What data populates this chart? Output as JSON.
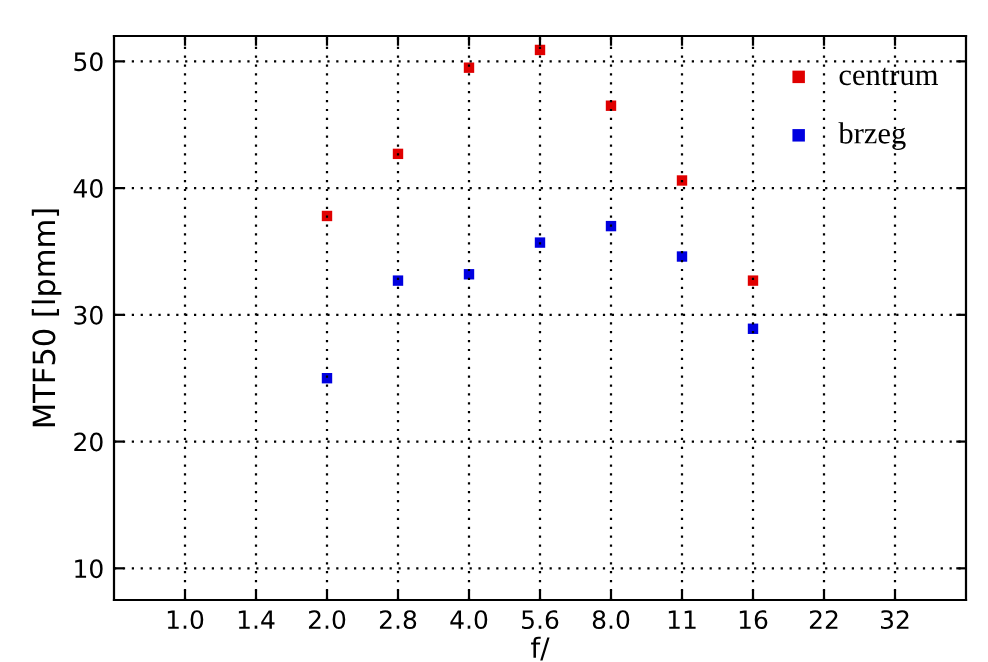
{
  "chart_data": {
    "type": "scatter",
    "xlabel": "f/",
    "ylabel": "MTF50 [lpmm]",
    "categories": [
      "1.0",
      "1.4",
      "2.0",
      "2.8",
      "4.0",
      "5.6",
      "8.0",
      "11",
      "16",
      "22",
      "32"
    ],
    "series": [
      {
        "name": "centrum",
        "color": "#e00000",
        "values": [
          null,
          null,
          37.8,
          42.7,
          49.5,
          50.9,
          46.5,
          40.6,
          32.7,
          null,
          null
        ]
      },
      {
        "name": "brzeg",
        "color": "#0000e0",
        "values": [
          null,
          null,
          25.0,
          32.7,
          33.2,
          35.7,
          37.0,
          34.6,
          28.9,
          null,
          null
        ]
      }
    ],
    "ylim": [
      7.5,
      52
    ],
    "yticks": [
      10,
      20,
      30,
      40,
      50
    ],
    "grid": true,
    "legend": "top right",
    "marker": "square"
  }
}
